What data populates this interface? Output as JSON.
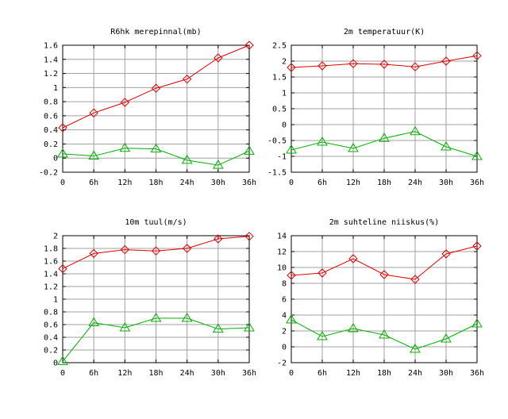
{
  "chart_data": [
    {
      "type": "line",
      "title": "R6hk merepinnal(mb)",
      "categories": [
        "0",
        "6h",
        "12h",
        "18h",
        "24h",
        "30h",
        "36h"
      ],
      "yticks": [
        "-0.2",
        "0",
        "0.2",
        "0.4",
        "0.6",
        "0.8",
        "1",
        "1.2",
        "1.4",
        "1.6"
      ],
      "ylim": [
        -0.2,
        1.6
      ],
      "grid": true,
      "series": [
        {
          "marker": "diamond",
          "color": "#e00000",
          "values": [
            0.43,
            0.64,
            0.79,
            0.99,
            1.12,
            1.42,
            1.6
          ]
        },
        {
          "marker": "triangle",
          "color": "#00b000",
          "values": [
            0.06,
            0.03,
            0.14,
            0.13,
            -0.03,
            -0.1,
            0.1
          ]
        }
      ]
    },
    {
      "type": "line",
      "title": "2m temperatuur(K)",
      "categories": [
        "0",
        "6h",
        "12h",
        "18h",
        "24h",
        "30h",
        "36h"
      ],
      "yticks": [
        "-1.5",
        "-1",
        "-0.5",
        "0",
        "0.5",
        "1",
        "1.5",
        "2",
        "2.5"
      ],
      "ylim": [
        -1.5,
        2.5
      ],
      "grid": true,
      "series": [
        {
          "marker": "diamond",
          "color": "#e00000",
          "values": [
            1.8,
            1.85,
            1.92,
            1.9,
            1.82,
            2.0,
            2.17
          ]
        },
        {
          "marker": "triangle",
          "color": "#00b000",
          "values": [
            -0.8,
            -0.55,
            -0.75,
            -0.43,
            -0.22,
            -0.7,
            -1.0
          ]
        }
      ]
    },
    {
      "type": "line",
      "title": "10m tuul(m/s)",
      "categories": [
        "0",
        "6h",
        "12h",
        "18h",
        "24h",
        "30h",
        "36h"
      ],
      "yticks": [
        "0",
        "0.2",
        "0.4",
        "0.6",
        "0.8",
        "1",
        "1.2",
        "1.4",
        "1.6",
        "1.8",
        "2"
      ],
      "ylim": [
        0,
        2
      ],
      "grid": true,
      "series": [
        {
          "marker": "diamond",
          "color": "#e00000",
          "values": [
            1.48,
            1.72,
            1.78,
            1.76,
            1.8,
            1.95,
            1.99
          ]
        },
        {
          "marker": "triangle",
          "color": "#00b000",
          "values": [
            0.02,
            0.63,
            0.55,
            0.7,
            0.7,
            0.53,
            0.55
          ]
        }
      ]
    },
    {
      "type": "line",
      "title": "2m suhteline niiskus(%)",
      "categories": [
        "0",
        "6h",
        "12h",
        "18h",
        "24h",
        "30h",
        "36h"
      ],
      "yticks": [
        "-2",
        "0",
        "2",
        "4",
        "6",
        "8",
        "10",
        "12",
        "14"
      ],
      "ylim": [
        -2,
        14
      ],
      "grid": true,
      "series": [
        {
          "marker": "diamond",
          "color": "#e00000",
          "values": [
            9.0,
            9.3,
            11.1,
            9.1,
            8.5,
            11.7,
            12.7
          ]
        },
        {
          "marker": "triangle",
          "color": "#00b000",
          "values": [
            3.4,
            1.3,
            2.3,
            1.5,
            -0.3,
            1.0,
            2.9
          ]
        }
      ]
    }
  ]
}
